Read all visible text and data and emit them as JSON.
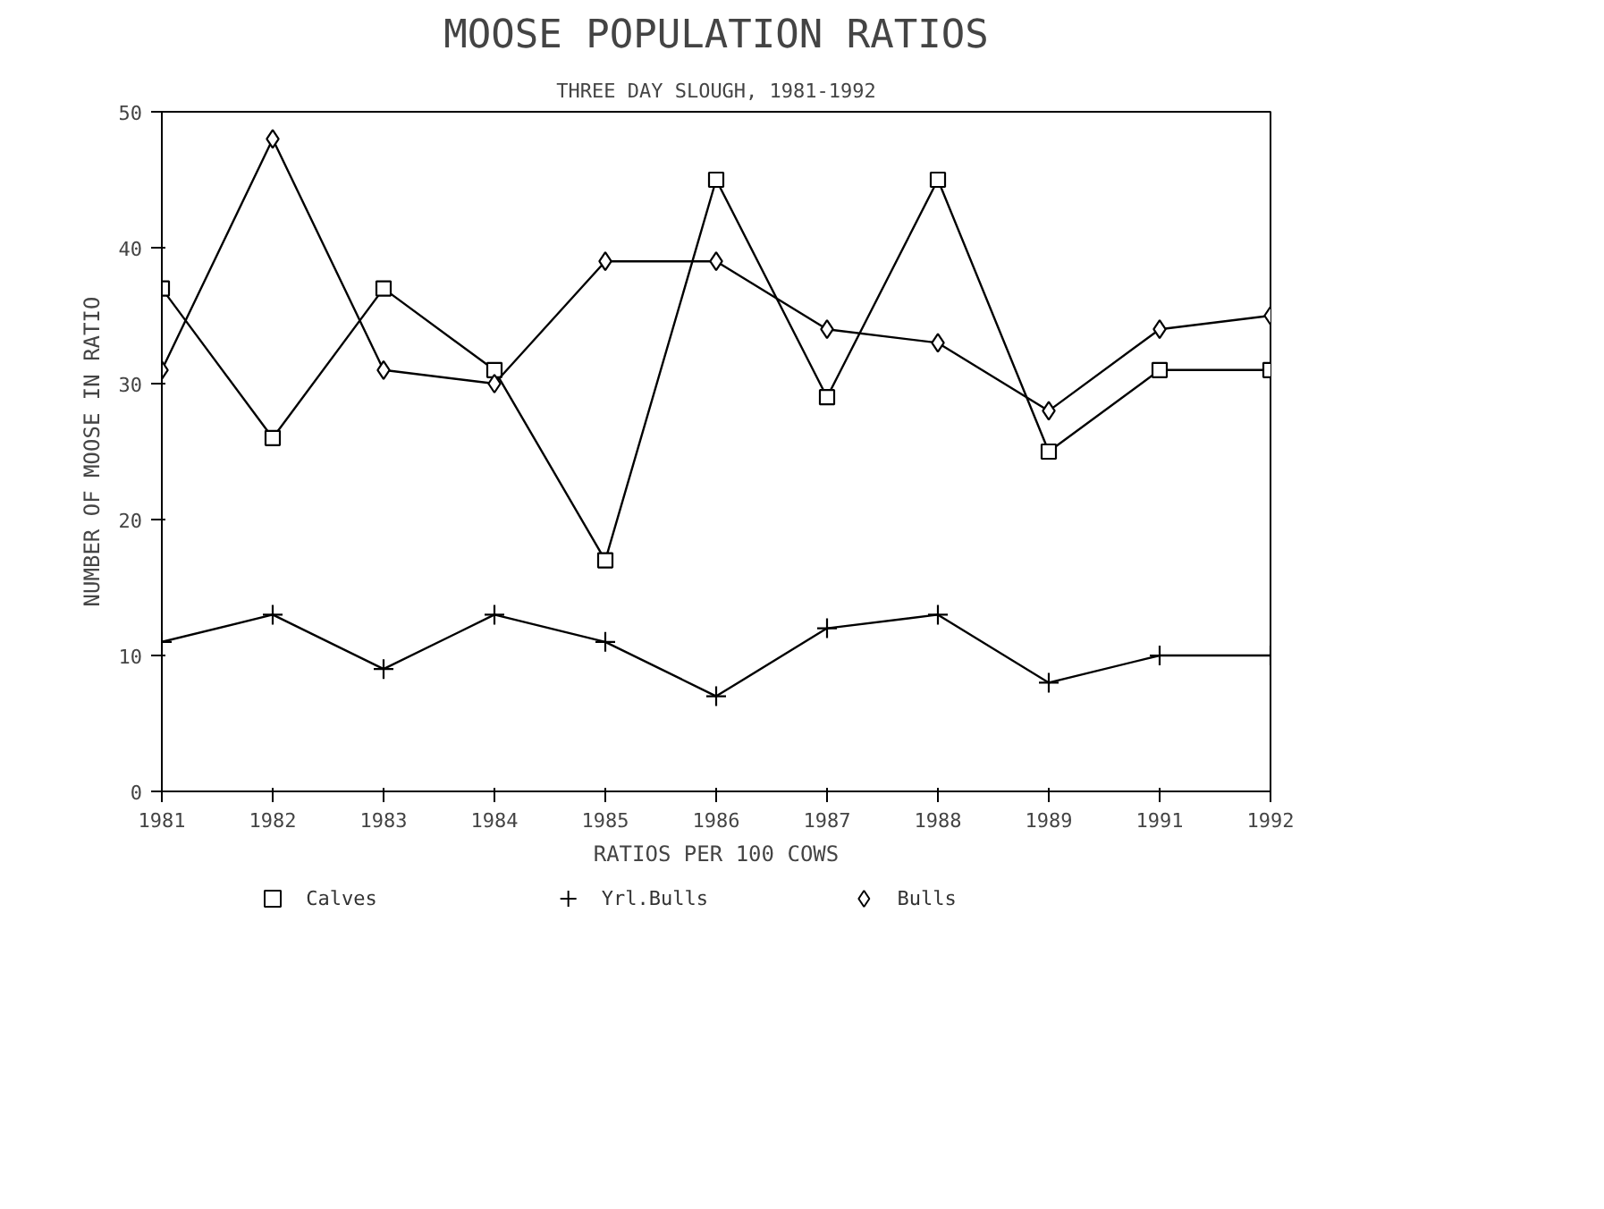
{
  "chart_data": {
    "type": "line",
    "title": "MOOSE POPULATION RATIOS",
    "subtitle": "THREE DAY SLOUGH, 1981-1992",
    "xlabel": "RATIOS PER 100 COWS",
    "ylabel": "NUMBER OF MOOSE IN RATIO",
    "categories": [
      "1981",
      "1982",
      "1983",
      "1984",
      "1985",
      "1986",
      "1987",
      "1988",
      "1989",
      "1991",
      "1992"
    ],
    "series": [
      {
        "name": "Calves",
        "color": "#000000",
        "marker": "square",
        "values": [
          37,
          26,
          37,
          31,
          17,
          45,
          29,
          45,
          25,
          31,
          31
        ]
      },
      {
        "name": "Yrl.Bulls",
        "color": "#000000",
        "marker": "cross",
        "values": [
          11,
          13,
          9,
          13,
          11,
          7,
          12,
          13,
          8,
          10,
          10
        ]
      },
      {
        "name": "Bulls",
        "color": "#000000",
        "marker": "diamond",
        "values": [
          31,
          48,
          31,
          30,
          39,
          39,
          34,
          33,
          28,
          34,
          35
        ]
      }
    ],
    "ylim": [
      0,
      50
    ],
    "yticks": [
      0,
      10,
      20,
      30,
      40,
      50
    ],
    "grid": false,
    "legend": "bottom",
    "line_style": "solid"
  }
}
